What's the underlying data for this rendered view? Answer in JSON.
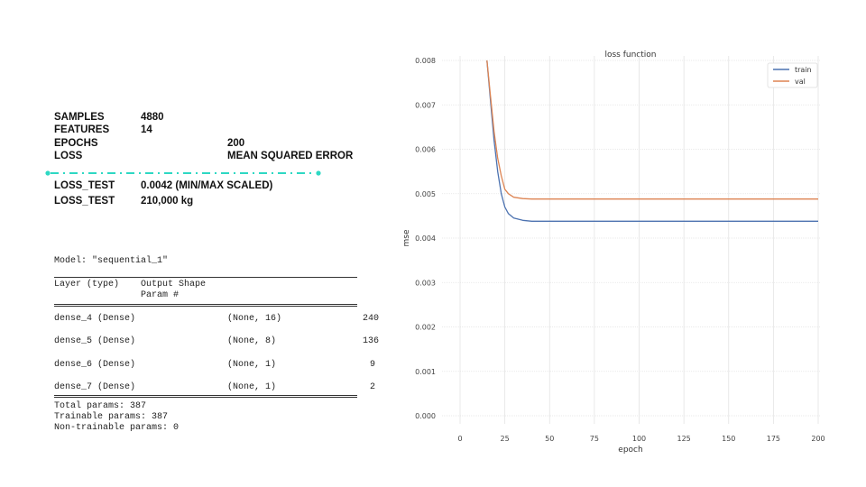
{
  "stats": {
    "samples": {
      "label": "SAMPLES",
      "value": "4880"
    },
    "features": {
      "label": "FEATURES",
      "value": "14"
    },
    "epochs": {
      "label": "EPOCHS",
      "value": "200"
    },
    "loss": {
      "label": "LOSS",
      "value": "MEAN SQUARED ERROR"
    },
    "loss_test_scaled": {
      "label": "LOSS_TEST",
      "value": "0.0042 (MIN/MAX SCALED)"
    },
    "loss_test_kg": {
      "label": "LOSS_TEST",
      "value": "210,000 kg"
    },
    "separator_color": "#2ed8c3"
  },
  "model_summary": {
    "title": "Model: \"sequential_1\"",
    "header_col1": "Layer (type)",
    "header_col2": "Output Shape",
    "header_col3": "Param #",
    "layers": [
      {
        "name": "dense_4 (Dense)",
        "shape": "(None, 16)",
        "params": "240"
      },
      {
        "name": "dense_5 (Dense)",
        "shape": "(None, 8)",
        "params": "136"
      },
      {
        "name": "dense_6 (Dense)",
        "shape": "(None, 1)",
        "params": "9"
      },
      {
        "name": "dense_7 (Dense)",
        "shape": "(None, 1)",
        "params": "2"
      }
    ],
    "total": "Total params: 387",
    "trainable": "Trainable params: 387",
    "non_trainable": "Non-trainable params: 0"
  },
  "chart_data": {
    "type": "line",
    "title": "loss function",
    "xlabel": "epoch",
    "ylabel": "mse",
    "xlim": [
      0,
      200
    ],
    "ylim": [
      0.0,
      0.008
    ],
    "xticks": [
      0,
      25,
      50,
      75,
      100,
      125,
      150,
      175,
      200
    ],
    "yticks": [
      "0.000",
      "0.001",
      "0.002",
      "0.003",
      "0.004",
      "0.005",
      "0.006",
      "0.007",
      "0.008"
    ],
    "grid": true,
    "legend_position": "upper right",
    "series": [
      {
        "name": "train",
        "color": "#4c72b0",
        "x": [
          15,
          17,
          19,
          21,
          23,
          25,
          27,
          30,
          35,
          40,
          50,
          75,
          100,
          125,
          150,
          175,
          200
        ],
        "y": [
          0.008,
          0.0071,
          0.0062,
          0.0055,
          0.005,
          0.0047,
          0.00455,
          0.00445,
          0.0044,
          0.00438,
          0.00438,
          0.00438,
          0.00438,
          0.00438,
          0.00438,
          0.00438,
          0.00438
        ]
      },
      {
        "name": "val",
        "color": "#dd8452",
        "x": [
          15,
          17,
          19,
          21,
          23,
          25,
          27,
          30,
          35,
          40,
          50,
          75,
          100,
          125,
          150,
          175,
          200
        ],
        "y": [
          0.008,
          0.0072,
          0.0064,
          0.0058,
          0.0054,
          0.0051,
          0.005,
          0.00492,
          0.00489,
          0.00488,
          0.00488,
          0.00488,
          0.00488,
          0.00488,
          0.00488,
          0.00488,
          0.00488
        ]
      }
    ]
  }
}
